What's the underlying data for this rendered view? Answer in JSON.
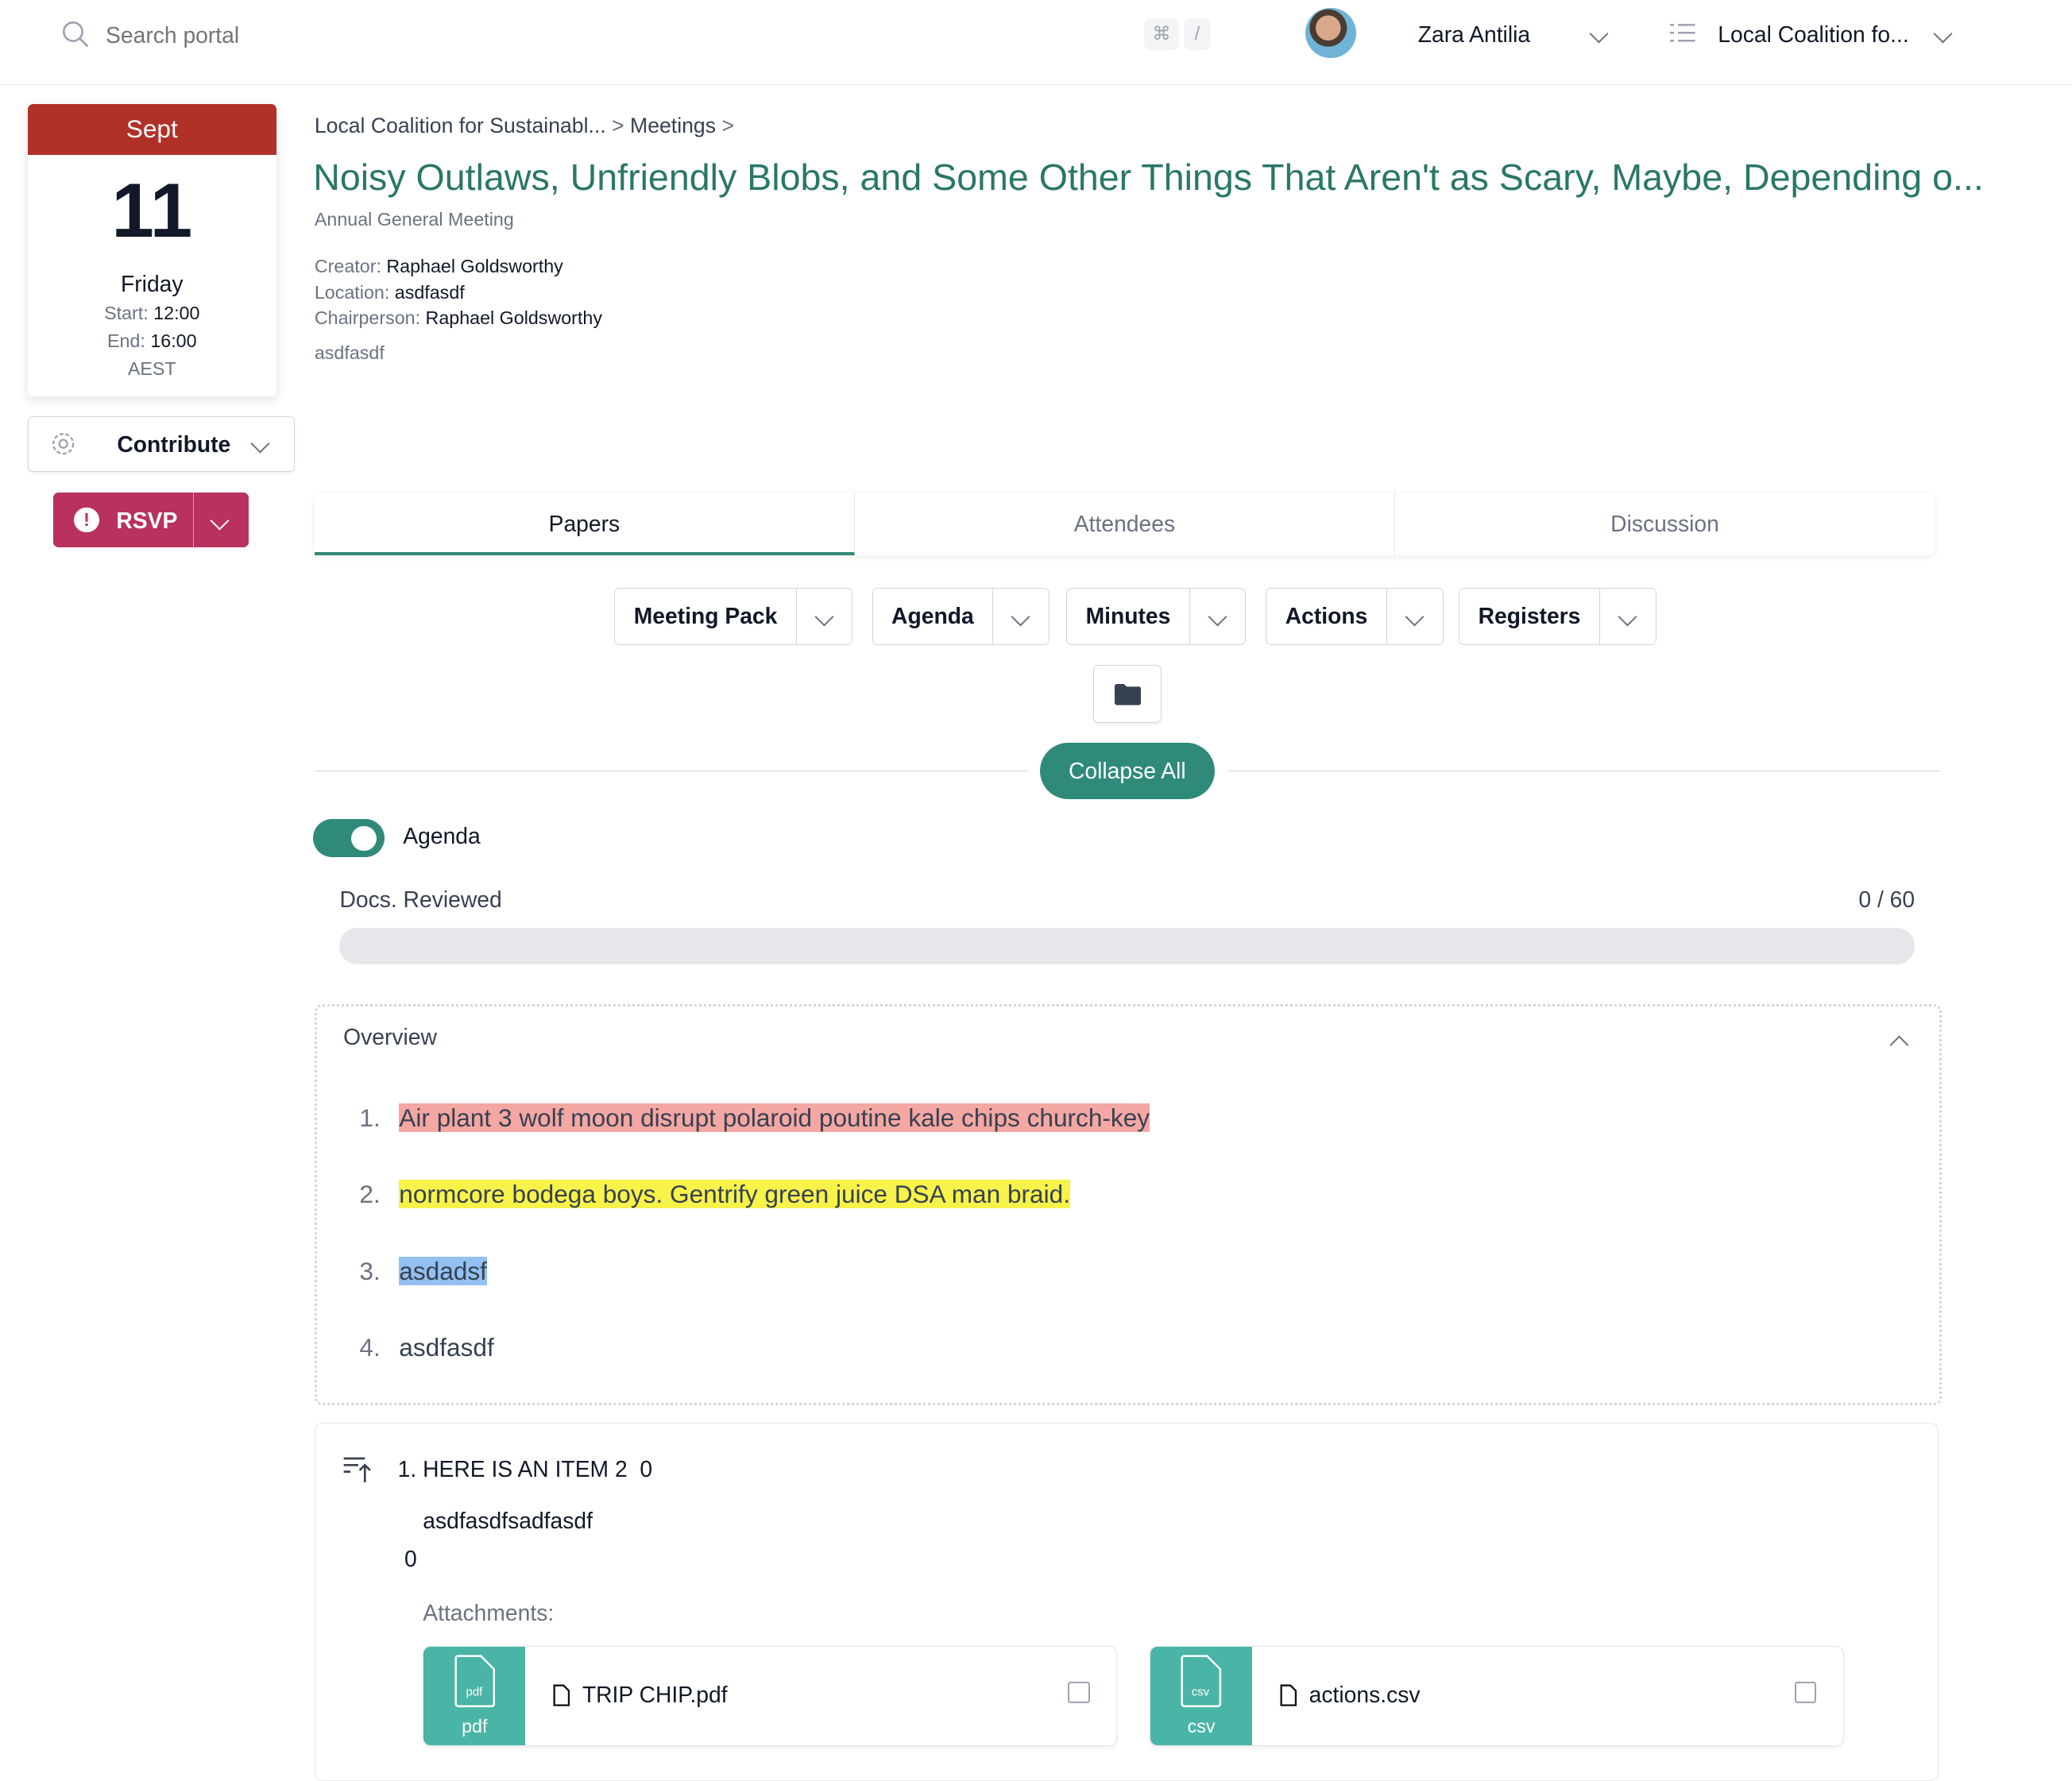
{
  "header": {
    "search_placeholder": "Search portal",
    "shortcut_keys": [
      "⌘",
      "/"
    ],
    "user_name": "Zara Antilia",
    "org_name": "Local Coalition fo..."
  },
  "calendar": {
    "month": "Sept",
    "day": "11",
    "weekday": "Friday",
    "start_label": "Start:",
    "start": "12:00",
    "end_label": "End:",
    "end": "16:00",
    "timezone": "AEST"
  },
  "sidebar": {
    "contribute_label": "Contribute",
    "rsvp_label": "RSVP"
  },
  "breadcrumb": {
    "items": [
      "Local Coalition for Sustainabl...",
      "Meetings"
    ],
    "separator": ">"
  },
  "meeting": {
    "title": "Noisy Outlaws, Unfriendly Blobs, and Some Other Things That Aren't as Scary, Maybe, Depending o...",
    "type": "Annual General Meeting",
    "creator_label": "Creator:",
    "creator": "Raphael Goldsworthy",
    "location_label": "Location:",
    "location": "asdfasdf",
    "chair_label": "Chairperson:",
    "chair": "Raphael Goldsworthy",
    "description": "asdfasdf"
  },
  "tabs": [
    {
      "label": "Papers",
      "active": true
    },
    {
      "label": "Attendees",
      "active": false
    },
    {
      "label": "Discussion",
      "active": false
    }
  ],
  "paper_buttons": [
    "Meeting Pack",
    "Agenda",
    "Minutes",
    "Actions",
    "Registers"
  ],
  "collapse_label": "Collapse All",
  "agenda_toggle": {
    "label": "Agenda",
    "on": true
  },
  "progress": {
    "label": "Docs. Reviewed",
    "text": "0 / 60",
    "reviewed": 0,
    "total": 60
  },
  "overview": {
    "title": "Overview",
    "items": [
      {
        "num": "1.",
        "text": "Air plant 3 wolf moon disrupt polaroid poutine kale chips church-key",
        "highlight": "#f4a7a3"
      },
      {
        "num": "2.",
        "text": "normcore bodega boys. Gentrify green juice DSA man braid.",
        "highlight": "#f7f34a"
      },
      {
        "num": "3.",
        "text": "asdadsf",
        "highlight": "#93c0f0"
      },
      {
        "num": "4.",
        "text": "asdfasdf",
        "highlight": ""
      }
    ]
  },
  "item": {
    "title": "1. HERE IS AN ITEM 2",
    "count": "0",
    "description": "asdfasdfsadfasdf",
    "value": "0",
    "attachments_label": "Attachments:",
    "attachments": [
      {
        "type": "pdf",
        "name": "TRIP CHIP.pdf"
      },
      {
        "type": "csv",
        "name": "actions.csv"
      }
    ]
  },
  "colors": {
    "accent": "#2f8a7a",
    "title": "#2a7767",
    "calendar_header": "#b03128",
    "rsvp": "#b8325d",
    "attachment": "#4ab5a6"
  }
}
